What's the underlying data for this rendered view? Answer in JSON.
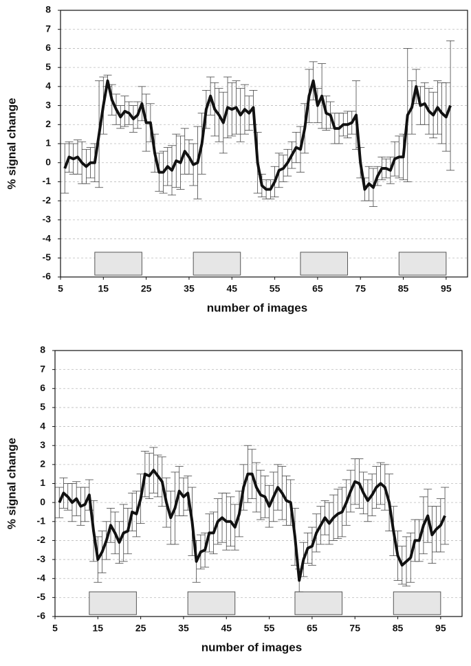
{
  "chart_data": [
    {
      "type": "line",
      "xlabel": "number of images",
      "ylabel": "% signal change",
      "xlim": [
        5,
        100
      ],
      "xticks": [
        5,
        15,
        25,
        35,
        45,
        55,
        65,
        75,
        85,
        95
      ],
      "ylim": [
        -6,
        8
      ],
      "yticks": [
        -6,
        -5,
        -4,
        -3,
        -2,
        -1,
        0,
        1,
        2,
        3,
        4,
        5,
        6,
        7,
        8
      ],
      "grid": true,
      "blocks": [
        [
          13,
          24
        ],
        [
          36,
          47
        ],
        [
          61,
          72
        ],
        [
          84,
          95
        ]
      ],
      "block_y": [
        -5.9,
        -4.7
      ],
      "block_color": "#e6e6e6",
      "x": [
        6,
        7,
        8,
        9,
        10,
        11,
        12,
        13,
        14,
        15,
        16,
        17,
        18,
        19,
        20,
        21,
        22,
        23,
        24,
        25,
        26,
        27,
        28,
        29,
        30,
        31,
        32,
        33,
        34,
        35,
        36,
        37,
        38,
        39,
        40,
        41,
        42,
        43,
        44,
        45,
        46,
        47,
        48,
        49,
        50,
        51,
        52,
        53,
        54,
        55,
        56,
        57,
        58,
        59,
        60,
        61,
        62,
        63,
        64,
        65,
        66,
        67,
        68,
        69,
        70,
        71,
        72,
        73,
        74,
        75,
        76,
        77,
        78,
        79,
        80,
        81,
        82,
        83,
        84,
        85,
        86,
        87,
        88,
        89,
        90,
        91,
        92,
        93,
        94,
        95,
        96
      ],
      "series": [
        {
          "color": "#111111",
          "values": [
            -0.3,
            0.3,
            0.2,
            0.3,
            0.0,
            -0.2,
            0.0,
            0.0,
            1.5,
            3.0,
            4.3,
            3.3,
            2.8,
            2.4,
            2.7,
            2.6,
            2.3,
            2.5,
            3.1,
            2.1,
            2.1,
            0.5,
            -0.5,
            -0.5,
            -0.2,
            -0.4,
            0.1,
            0.0,
            0.6,
            0.3,
            -0.1,
            0.0,
            1.0,
            2.8,
            3.5,
            2.8,
            2.5,
            2.1,
            2.9,
            2.8,
            2.9,
            2.5,
            2.8,
            2.6,
            2.9,
            0.0,
            -1.2,
            -1.4,
            -1.4,
            -1.0,
            -0.4,
            -0.3,
            0.0,
            0.4,
            0.8,
            0.7,
            1.8,
            3.5,
            4.3,
            3.0,
            3.5,
            2.6,
            2.5,
            1.8,
            1.8,
            2.0,
            2.0,
            2.1,
            2.5,
            0.0,
            -1.4,
            -1.1,
            -1.3,
            -0.7,
            -0.3,
            -0.3,
            -0.4,
            0.2,
            0.3,
            0.3,
            2.5,
            2.9,
            4.0,
            3.0,
            3.1,
            2.7,
            2.5,
            2.9,
            2.6,
            2.4,
            3.0
          ],
          "errors": [
            1.3,
            0.8,
            0.8,
            0.9,
            1.1,
            0.9,
            0.8,
            1.0,
            2.8,
            1.5,
            0.3,
            0.8,
            0.8,
            0.6,
            0.8,
            0.6,
            0.7,
            0.7,
            0.9,
            1.5,
            1.0,
            1.0,
            1.0,
            1.1,
            1.0,
            1.3,
            1.4,
            1.4,
            1.2,
            0.9,
            1.1,
            1.9,
            1.6,
            1.0,
            1.0,
            1.4,
            1.4,
            1.6,
            1.6,
            1.4,
            1.4,
            1.4,
            1.3,
            0.9,
            0.9,
            1.6,
            0.6,
            0.5,
            0.5,
            0.8,
            0.9,
            0.7,
            0.7,
            0.7,
            0.8,
            1.2,
            1.3,
            1.4,
            1.0,
            0.9,
            1.7,
            0.9,
            0.7,
            0.8,
            0.8,
            0.6,
            0.7,
            0.6,
            1.8,
            0.8,
            0.6,
            0.9,
            1.0,
            0.5,
            0.6,
            0.5,
            0.7,
            0.9,
            1.1,
            1.2,
            3.5,
            1.4,
            0.9,
            1.0,
            1.1,
            1.2,
            1.2,
            1.4,
            1.6,
            1.8,
            3.4
          ]
        }
      ]
    },
    {
      "type": "line",
      "xlabel": "number of images",
      "ylabel": "% signal change",
      "xlim": [
        5,
        100
      ],
      "xticks": [
        5,
        15,
        25,
        35,
        45,
        55,
        65,
        75,
        85,
        95
      ],
      "ylim": [
        -6,
        8
      ],
      "yticks": [
        -6,
        -5,
        -4,
        -3,
        -2,
        -1,
        0,
        1,
        2,
        3,
        4,
        5,
        6,
        7,
        8
      ],
      "grid": true,
      "blocks": [
        [
          13,
          24
        ],
        [
          36,
          47
        ],
        [
          61,
          72
        ],
        [
          84,
          95
        ]
      ],
      "block_y": [
        -5.9,
        -4.7
      ],
      "block_color": "#e6e6e6",
      "x": [
        6,
        7,
        8,
        9,
        10,
        11,
        12,
        13,
        14,
        15,
        16,
        17,
        18,
        19,
        20,
        21,
        22,
        23,
        24,
        25,
        26,
        27,
        28,
        29,
        30,
        31,
        32,
        33,
        34,
        35,
        36,
        37,
        38,
        39,
        40,
        41,
        42,
        43,
        44,
        45,
        46,
        47,
        48,
        49,
        50,
        51,
        52,
        53,
        54,
        55,
        56,
        57,
        58,
        59,
        60,
        61,
        62,
        63,
        64,
        65,
        66,
        67,
        68,
        69,
        70,
        71,
        72,
        73,
        74,
        75,
        76,
        77,
        78,
        79,
        80,
        81,
        82,
        83,
        84,
        85,
        86,
        87,
        88,
        89,
        90,
        91,
        92,
        93,
        94,
        95,
        96
      ],
      "series": [
        {
          "color": "#111111",
          "values": [
            0.0,
            0.5,
            0.3,
            0.0,
            0.2,
            -0.2,
            -0.1,
            0.4,
            -1.5,
            -3.0,
            -2.6,
            -2.0,
            -1.2,
            -1.6,
            -2.1,
            -1.6,
            -1.5,
            -0.5,
            -0.6,
            0.2,
            1.5,
            1.4,
            1.7,
            1.4,
            1.1,
            0.0,
            -0.8,
            -0.3,
            0.6,
            0.3,
            0.5,
            -1.0,
            -3.1,
            -2.6,
            -2.5,
            -1.6,
            -1.6,
            -1.0,
            -0.8,
            -1.0,
            -1.0,
            -1.3,
            -0.6,
            0.8,
            1.5,
            1.5,
            0.8,
            0.4,
            0.3,
            -0.2,
            0.3,
            0.8,
            0.5,
            0.1,
            0.0,
            -1.8,
            -4.1,
            -3.0,
            -2.4,
            -2.3,
            -1.6,
            -1.2,
            -0.8,
            -1.1,
            -0.8,
            -0.6,
            -0.5,
            0.0,
            0.6,
            1.1,
            1.0,
            0.5,
            0.1,
            0.4,
            0.8,
            1.0,
            0.8,
            0.0,
            -1.5,
            -2.8,
            -3.3,
            -3.1,
            -2.9,
            -2.0,
            -2.0,
            -1.2,
            -0.7,
            -1.7,
            -1.4,
            -1.2,
            -0.7
          ],
          "errors": [
            0.8,
            0.8,
            0.7,
            1.0,
            0.9,
            1.0,
            0.9,
            0.8,
            1.6,
            1.2,
            1.1,
            1.0,
            0.9,
            1.1,
            1.1,
            1.5,
            1.2,
            1.0,
            1.2,
            1.3,
            1.2,
            1.2,
            1.2,
            1.1,
            1.3,
            1.3,
            1.4,
            1.9,
            1.3,
            1.0,
            0.9,
            1.8,
            1.1,
            0.9,
            0.9,
            1.0,
            1.1,
            1.2,
            1.3,
            1.5,
            1.3,
            1.2,
            1.2,
            1.2,
            1.5,
            1.3,
            1.3,
            1.3,
            1.1,
            1.1,
            1.3,
            1.2,
            1.4,
            1.3,
            1.2,
            1.5,
            0.6,
            0.9,
            0.8,
            1.0,
            1.0,
            1.0,
            0.9,
            1.1,
            1.2,
            1.3,
            1.3,
            1.2,
            1.1,
            1.2,
            1.3,
            1.1,
            1.1,
            1.1,
            1.1,
            1.1,
            1.2,
            1.5,
            1.3,
            1.3,
            1.0,
            1.3,
            1.3,
            1.1,
            1.1,
            1.5,
            1.4,
            1.5,
            1.2,
            1.4,
            1.5
          ]
        }
      ]
    }
  ]
}
